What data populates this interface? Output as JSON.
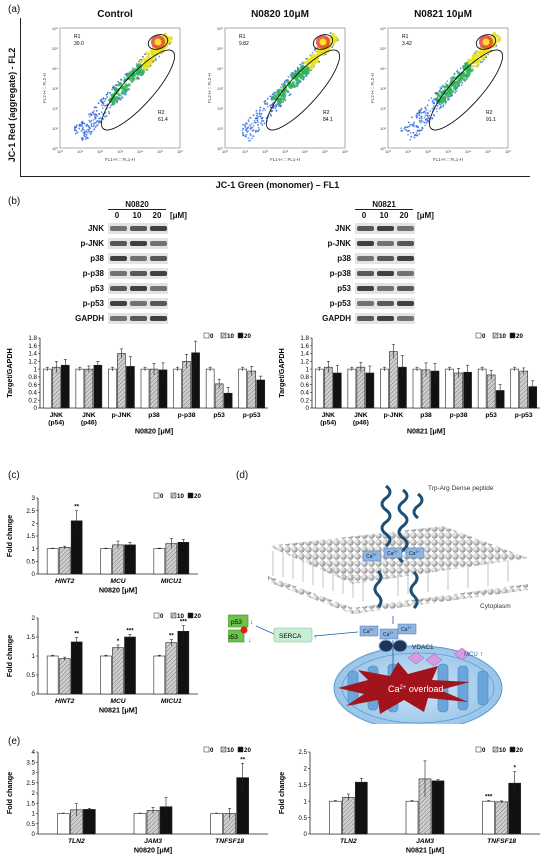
{
  "panel_a": {
    "label": "(a)",
    "ylabel": "JC-1 Red (aggregate) - FL2",
    "xlabel": "JC-1 Green (monomer) – FL1",
    "axis_x_text": "FL1-H :: FL1-H",
    "axis_y_text": "FL2-H :: FL2-H",
    "ticks": [
      "10⁰",
      "10¹",
      "10²",
      "10³",
      "10⁴",
      "10⁵",
      "10⁶"
    ],
    "plots": [
      {
        "title": "Control",
        "r1_label": "R1",
        "r1_value": "30.0",
        "r2_label": "R2",
        "r2_value": "61.4"
      },
      {
        "title": "N0820 10μM",
        "r1_label": "R1",
        "r1_value": "9.82",
        "r2_label": "R2",
        "r2_value": "84.1"
      },
      {
        "title": "N0821 10μM",
        "r1_label": "R1",
        "r1_value": "3.42",
        "r2_label": "R2",
        "r2_value": "91.1"
      }
    ]
  },
  "panel_b": {
    "label": "(b)",
    "blots": [
      {
        "compound": "N0820",
        "doses": [
          "0",
          "10",
          "20"
        ],
        "unit": "[μM]",
        "rows": [
          "JNK",
          "p-JNK",
          "p38",
          "p-p38",
          "p53",
          "p-p53",
          "GAPDH"
        ]
      },
      {
        "compound": "N0821",
        "doses": [
          "0",
          "10",
          "20"
        ],
        "unit": "[μM]",
        "rows": [
          "JNK",
          "p-JNK",
          "p38",
          "p-p38",
          "p53",
          "p-p53",
          "GAPDH"
        ]
      }
    ]
  },
  "panel_c": {
    "label": "(c)"
  },
  "panel_d": {
    "label": "(d)",
    "peptide_label": "Trp-Arg Dense peptide",
    "cytoplasm": "Cytoplasm",
    "ca": "Ca",
    "ca_sup": "2+",
    "p53": "p53",
    "serca": "SERCA",
    "vdac1": "VDAC1",
    "mcu": "MCU",
    "overload": "Ca",
    "overload_sup": "2+",
    "overload_rest": " overload",
    "arrow_up": "↑",
    "arrow_down": "↓"
  },
  "panel_e": {
    "label": "(e)"
  },
  "chart_data": [
    {
      "type": "bar",
      "id": "b1",
      "categories": [
        "JNK\n(p54)",
        "JNK\n(p46)",
        "p-JNK",
        "p38",
        "p-p38",
        "p53",
        "p-p53"
      ],
      "series": [
        {
          "name": "0",
          "values": [
            1,
            1,
            1,
            1,
            1,
            1,
            1
          ]
        },
        {
          "name": "10",
          "values": [
            1.05,
            1.0,
            1.4,
            1.0,
            1.2,
            0.62,
            0.95
          ]
        },
        {
          "name": "20",
          "values": [
            1.1,
            1.1,
            1.07,
            0.98,
            1.42,
            0.38,
            0.72
          ]
        }
      ],
      "errors": [
        [
          0.05,
          0.05,
          0.05,
          0.05,
          0.05,
          0.05,
          0.05
        ],
        [
          0.15,
          0.08,
          0.12,
          0.15,
          0.18,
          0.12,
          0.12
        ],
        [
          0.15,
          0.1,
          0.25,
          0.18,
          0.3,
          0.15,
          0.1
        ]
      ],
      "ylabel": "Target/GAPDH",
      "xlabel": "N0820 [μM]",
      "ylim": [
        0,
        1.8
      ],
      "yticks": [
        "0",
        "0.2",
        "0.4",
        "0.6",
        "0.8",
        "1",
        "1.2",
        "1.4",
        "1.6",
        "1.8"
      ],
      "legend": [
        "0",
        "10",
        "20"
      ],
      "legend_position": "top-right",
      "stars": [
        "",
        "",
        "",
        "",
        "",
        "",
        ""
      ]
    },
    {
      "type": "bar",
      "id": "b2",
      "categories": [
        "JNK\n(p54)",
        "JNK\n(p46)",
        "p-JNK",
        "p38",
        "p-p38",
        "p53",
        "p-p53"
      ],
      "series": [
        {
          "name": "0",
          "values": [
            1,
            1,
            1,
            1,
            1,
            1,
            1
          ]
        },
        {
          "name": "10",
          "values": [
            1.05,
            1.05,
            1.45,
            0.98,
            0.9,
            0.85,
            0.95
          ]
        },
        {
          "name": "20",
          "values": [
            0.9,
            0.9,
            1.05,
            0.95,
            0.92,
            0.45,
            0.55
          ]
        }
      ],
      "errors": [
        [
          0.05,
          0.05,
          0.05,
          0.05,
          0.05,
          0.05,
          0.05
        ],
        [
          0.15,
          0.12,
          0.18,
          0.18,
          0.12,
          0.12,
          0.08
        ],
        [
          0.2,
          0.18,
          0.3,
          0.2,
          0.18,
          0.15,
          0.15
        ]
      ],
      "ylabel": "Target/GAPDH",
      "xlabel": "N0821 [μM]",
      "ylim": [
        0,
        1.8
      ],
      "yticks": [
        "0",
        "0.2",
        "0.4",
        "0.6",
        "0.8",
        "1",
        "1.2",
        "1.4",
        "1.6",
        "1.8"
      ],
      "legend": [
        "0",
        "10",
        "20"
      ],
      "legend_position": "top-right",
      "stars": [
        "",
        "",
        "",
        "",
        "",
        "",
        ""
      ]
    },
    {
      "type": "bar",
      "id": "c1",
      "categories": [
        "HINT2",
        "MCU",
        "MICU1"
      ],
      "series": [
        {
          "name": "0",
          "values": [
            1,
            1,
            1
          ]
        },
        {
          "name": "10",
          "values": [
            1.05,
            1.15,
            1.2
          ]
        },
        {
          "name": "20",
          "values": [
            2.1,
            1.15,
            1.25
          ]
        }
      ],
      "errors": [
        [
          0.02,
          0.02,
          0.02
        ],
        [
          0.05,
          0.15,
          0.2
        ],
        [
          0.4,
          0.1,
          0.12
        ]
      ],
      "ylabel": "Fold change",
      "xlabel": "N0820 [μM]",
      "ylim": [
        0,
        3
      ],
      "yticks": [
        "0",
        "0.5",
        "1",
        "1.5",
        "2",
        "2.5",
        "3"
      ],
      "legend": [
        "0",
        "10",
        "20"
      ],
      "legend_position": "top-right",
      "stars": [
        [
          "",
          "",
          "**"
        ],
        [
          "",
          "",
          ""
        ],
        [
          "",
          "",
          ""
        ]
      ]
    },
    {
      "type": "bar",
      "id": "c2",
      "categories": [
        "HINT2",
        "MCU",
        "MICU1"
      ],
      "series": [
        {
          "name": "0",
          "values": [
            1,
            1,
            1
          ]
        },
        {
          "name": "10",
          "values": [
            0.93,
            1.22,
            1.35
          ]
        },
        {
          "name": "20",
          "values": [
            1.37,
            1.5,
            1.65
          ]
        }
      ],
      "errors": [
        [
          0.02,
          0.02,
          0.02
        ],
        [
          0.04,
          0.07,
          0.08
        ],
        [
          0.12,
          0.07,
          0.15
        ]
      ],
      "ylabel": "Fold change",
      "xlabel": "N0821 [μM]",
      "ylim": [
        0,
        2
      ],
      "yticks": [
        "0",
        "0.5",
        "1",
        "1.5",
        "2"
      ],
      "legend": [
        "0",
        "10",
        "20"
      ],
      "legend_position": "top-right",
      "stars": [
        [
          "",
          "",
          "**"
        ],
        [
          "",
          "*",
          "***"
        ],
        [
          "",
          "**",
          "***"
        ]
      ]
    },
    {
      "type": "bar",
      "id": "e1",
      "categories": [
        "TLN2",
        "JAM3",
        "TNFSF18"
      ],
      "series": [
        {
          "name": "0",
          "values": [
            1,
            1,
            1
          ]
        },
        {
          "name": "10",
          "values": [
            1.18,
            1.15,
            1.0
          ]
        },
        {
          "name": "20",
          "values": [
            1.2,
            1.33,
            2.75
          ]
        }
      ],
      "errors": [
        [
          0.02,
          0.02,
          0.02
        ],
        [
          0.3,
          0.15,
          0.25
        ],
        [
          0.05,
          0.45,
          0.7
        ]
      ],
      "ylabel": "Fold change",
      "xlabel": "N0820 [μM]",
      "ylim": [
        0,
        4
      ],
      "yticks": [
        "0",
        "0.5",
        "1",
        "1.5",
        "2",
        "2.5",
        "3",
        "3.5",
        "4"
      ],
      "legend": [
        "0",
        "10",
        "20"
      ],
      "legend_position": "top-right",
      "stars": [
        [
          "",
          "",
          ""
        ],
        [
          "",
          "",
          ""
        ],
        [
          "",
          "",
          "**"
        ]
      ]
    },
    {
      "type": "bar",
      "id": "e2",
      "categories": [
        "TLN2",
        "JAM3",
        "TNFSF18"
      ],
      "series": [
        {
          "name": "0",
          "values": [
            1,
            1,
            1
          ]
        },
        {
          "name": "10",
          "values": [
            1.12,
            1.68,
            0.98
          ]
        },
        {
          "name": "20",
          "values": [
            1.58,
            1.62,
            1.55
          ]
        }
      ],
      "errors": [
        [
          0.02,
          0.02,
          0.02
        ],
        [
          0.1,
          0.55,
          0.03
        ],
        [
          0.12,
          0.04,
          0.35
        ]
      ],
      "ylabel": "Fold change",
      "xlabel": "N0821 [μM]",
      "ylim": [
        0,
        2.5
      ],
      "yticks": [
        "0",
        "0.5",
        "1",
        "1.5",
        "2",
        "2.5"
      ],
      "legend": [
        "0",
        "10",
        "20"
      ],
      "legend_position": "top-right",
      "stars": [
        [
          "",
          "",
          ""
        ],
        [
          "",
          "",
          ""
        ],
        [
          "***",
          "",
          "*"
        ]
      ]
    }
  ]
}
